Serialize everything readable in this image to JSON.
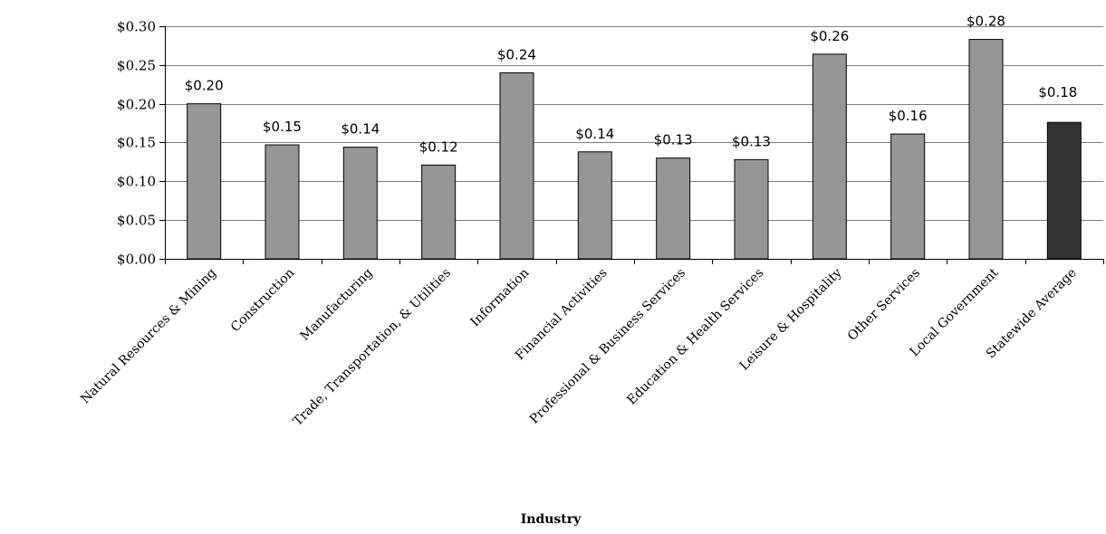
{
  "chart_data": {
    "type": "bar",
    "xlabel": "Industry",
    "ylabel": "",
    "ylim": [
      0,
      0.3
    ],
    "y_tick_step": 0.05,
    "grid": true,
    "legend": "none",
    "categories": [
      "Natural Resources & Mining",
      "Construction",
      "Manufacturing",
      "Trade, Transportation, & Utilities",
      "Information",
      "Financial Activities",
      "Professional & Business Services",
      "Education & Health Services",
      "Leisure & Hospitality",
      "Other Services",
      "Local Government",
      "Statewide Average"
    ],
    "values": [
      0.2,
      0.147,
      0.144,
      0.121,
      0.24,
      0.138,
      0.13,
      0.128,
      0.264,
      0.161,
      0.283,
      0.176
    ],
    "data_labels": [
      "$0.20",
      "$0.15",
      "$0.14",
      "$0.12",
      "$0.24",
      "$0.14",
      "$0.13",
      "$0.13",
      "$0.26",
      "$0.16",
      "$0.28",
      "$0.18"
    ],
    "y_tick_labels": [
      "$0.00",
      "$0.05",
      "$0.10",
      "$0.15",
      "$0.20",
      "$0.25",
      "$0.30"
    ],
    "labeled_bars": [
      true,
      true,
      true,
      true,
      true,
      true,
      true,
      true,
      true,
      true,
      true,
      false
    ],
    "colors": {
      "bar": "#969696",
      "highlight_bar": "#333333",
      "highlight_index": 11,
      "grid": "#808080",
      "axis": "#000000"
    }
  }
}
